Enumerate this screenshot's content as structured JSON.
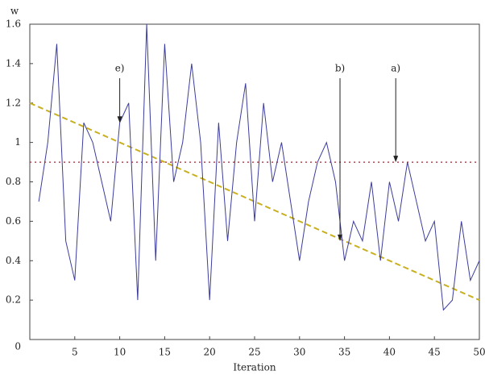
{
  "chart_data": {
    "type": "line",
    "y_label": "w",
    "x_label": "Iteration",
    "x": [
      1,
      2,
      3,
      4,
      5,
      6,
      7,
      8,
      9,
      10,
      11,
      12,
      13,
      14,
      15,
      16,
      17,
      18,
      19,
      20,
      21,
      22,
      23,
      24,
      25,
      26,
      27,
      28,
      29,
      30,
      31,
      32,
      33,
      34,
      35,
      36,
      37,
      38,
      39,
      40,
      41,
      42,
      43,
      44,
      45,
      46,
      47,
      48,
      49,
      50
    ],
    "series": [
      {
        "color": "#3c3c9c",
        "values": [
          0.7,
          1.0,
          1.5,
          0.5,
          0.3,
          1.1,
          1.0,
          0.8,
          0.6,
          1.1,
          1.2,
          0.2,
          1.6,
          0.4,
          1.5,
          0.8,
          1.0,
          1.4,
          1.0,
          0.2,
          1.1,
          0.5,
          1.0,
          1.3,
          0.6,
          1.2,
          0.8,
          1.0,
          0.7,
          0.4,
          0.7,
          0.9,
          1.0,
          0.8,
          0.4,
          0.6,
          0.5,
          0.8,
          0.4,
          0.8,
          0.6,
          0.9,
          0.7,
          0.5,
          0.6,
          0.15,
          0.2,
          0.6,
          0.3,
          0.4
        ]
      }
    ],
    "trend": {
      "x": [
        0,
        50
      ],
      "values": [
        1.2,
        0.2
      ],
      "color": "#c8b020"
    },
    "hline": {
      "value": 0.9,
      "color": "#c04050"
    },
    "annotations": [
      {
        "text": "e)",
        "x": 10,
        "y": 1.1
      },
      {
        "text": "b)",
        "x": 34.5,
        "y": 0.5
      },
      {
        "text": "a)",
        "x": 40.7,
        "y": 0.9
      }
    ],
    "xlim": [
      0,
      50
    ],
    "ylim": [
      0,
      1.6
    ],
    "xticks": [
      5,
      10,
      15,
      20,
      25,
      30,
      35,
      40,
      45,
      50
    ],
    "yticks": [
      0,
      0.2,
      0.4,
      0.6,
      0.8,
      1,
      1.2,
      1.4,
      1.6
    ]
  }
}
